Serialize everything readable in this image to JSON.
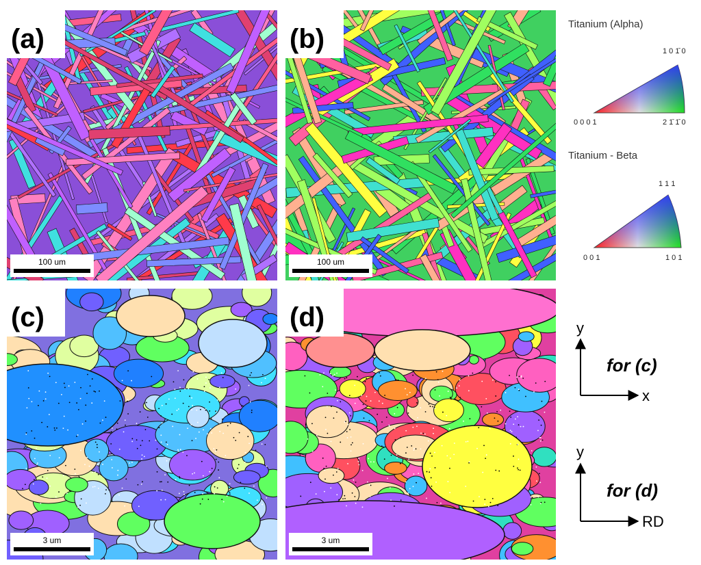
{
  "panels": [
    {
      "label": "(a)",
      "scale_bar": "100 um"
    },
    {
      "label": "(b)",
      "scale_bar": "100 um"
    },
    {
      "label": "(c)",
      "scale_bar": "3 um"
    },
    {
      "label": "(d)",
      "scale_bar": "3 um"
    }
  ],
  "legends": [
    {
      "title": "Titanium (Alpha)",
      "top": "1 0 1̄ 0",
      "left": "0 0 0 1",
      "right": "2 1̄ 1̄ 0"
    },
    {
      "title": "Titanium - Beta",
      "top": "1 1 1",
      "left": "0 0 1",
      "right": "1 0 1"
    }
  ],
  "axes": [
    {
      "y": "y",
      "caption": "for (c)",
      "x": "x"
    },
    {
      "y": "y",
      "caption": "for (d)",
      "x": "RD"
    }
  ]
}
